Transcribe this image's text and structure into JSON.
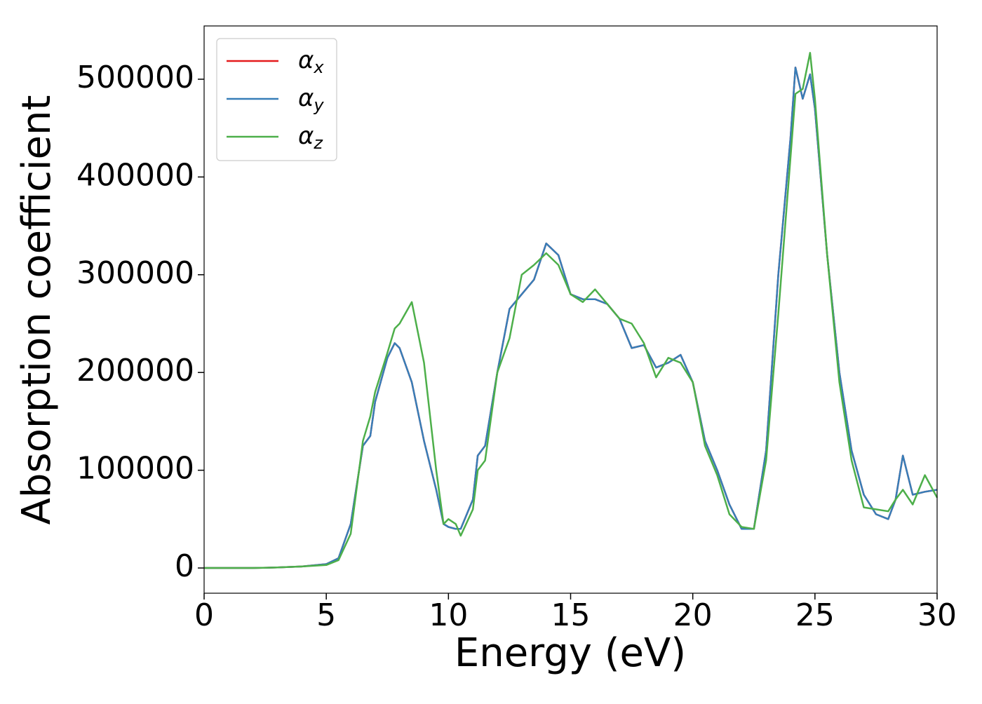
{
  "chart_data": {
    "type": "line",
    "x_label": "Energy (eV)",
    "y_label": "Absorption coefficient",
    "x": [
      0,
      1,
      2,
      3,
      4,
      5,
      5.5,
      6,
      6.5,
      6.8,
      7,
      7.5,
      7.8,
      8,
      8.5,
      9,
      9.5,
      9.8,
      10,
      10.3,
      10.5,
      11,
      11.2,
      11.5,
      12,
      12.5,
      13,
      13.5,
      14,
      14.5,
      15,
      15.5,
      16,
      16.5,
      17,
      17.5,
      18,
      18.5,
      19,
      19.5,
      20,
      20.5,
      21,
      21.5,
      22,
      22.5,
      23,
      23.5,
      24,
      24.2,
      24.5,
      24.8,
      25,
      25.5,
      26,
      26.5,
      27,
      27.5,
      28,
      28.3,
      28.6,
      29,
      29.5,
      30
    ],
    "series": [
      {
        "name": "αx",
        "color": "#e41a1c",
        "values": [
          0,
          0,
          0,
          500,
          1500,
          4000,
          10000,
          45000,
          125000,
          135000,
          170000,
          215000,
          230000,
          225000,
          190000,
          130000,
          80000,
          45000,
          42000,
          40000,
          40000,
          70000,
          115000,
          125000,
          200000,
          265000,
          280000,
          295000,
          332000,
          320000,
          280000,
          275000,
          275000,
          270000,
          255000,
          225000,
          228000,
          205000,
          210000,
          218000,
          190000,
          130000,
          100000,
          65000,
          40000,
          40000,
          120000,
          300000,
          440000,
          512000,
          480000,
          505000,
          470000,
          320000,
          200000,
          120000,
          75000,
          55000,
          50000,
          70000,
          115000,
          75000,
          78000,
          80000
        ]
      },
      {
        "name": "αy",
        "color": "#377eb8",
        "values": [
          0,
          0,
          0,
          500,
          1500,
          4000,
          10000,
          45000,
          125000,
          135000,
          170000,
          215000,
          230000,
          225000,
          190000,
          130000,
          80000,
          45000,
          42000,
          40000,
          40000,
          70000,
          115000,
          125000,
          200000,
          265000,
          280000,
          295000,
          332000,
          320000,
          280000,
          275000,
          275000,
          270000,
          255000,
          225000,
          228000,
          205000,
          210000,
          218000,
          190000,
          130000,
          100000,
          65000,
          40000,
          40000,
          120000,
          300000,
          440000,
          512000,
          480000,
          505000,
          470000,
          320000,
          200000,
          120000,
          75000,
          55000,
          50000,
          70000,
          115000,
          75000,
          78000,
          80000
        ]
      },
      {
        "name": "αz",
        "color": "#4daf4a",
        "values": [
          0,
          0,
          0,
          500,
          1500,
          3000,
          8000,
          35000,
          130000,
          155000,
          180000,
          220000,
          245000,
          250000,
          272000,
          210000,
          100000,
          45000,
          50000,
          45000,
          33000,
          60000,
          100000,
          110000,
          200000,
          235000,
          300000,
          310000,
          322000,
          310000,
          280000,
          272000,
          285000,
          270000,
          255000,
          250000,
          230000,
          195000,
          215000,
          210000,
          190000,
          125000,
          95000,
          55000,
          42000,
          40000,
          110000,
          260000,
          420000,
          485000,
          490000,
          527000,
          480000,
          320000,
          190000,
          110000,
          62000,
          60000,
          58000,
          70000,
          80000,
          65000,
          95000,
          72000
        ]
      }
    ],
    "xlim": [
      0,
      30
    ],
    "xticks": [
      0,
      5,
      10,
      15,
      20,
      25,
      30
    ],
    "ylim": [
      -25800,
      554500
    ],
    "yticks": [
      0,
      100000,
      200000,
      300000,
      400000,
      500000
    ],
    "legend": "upper left"
  }
}
